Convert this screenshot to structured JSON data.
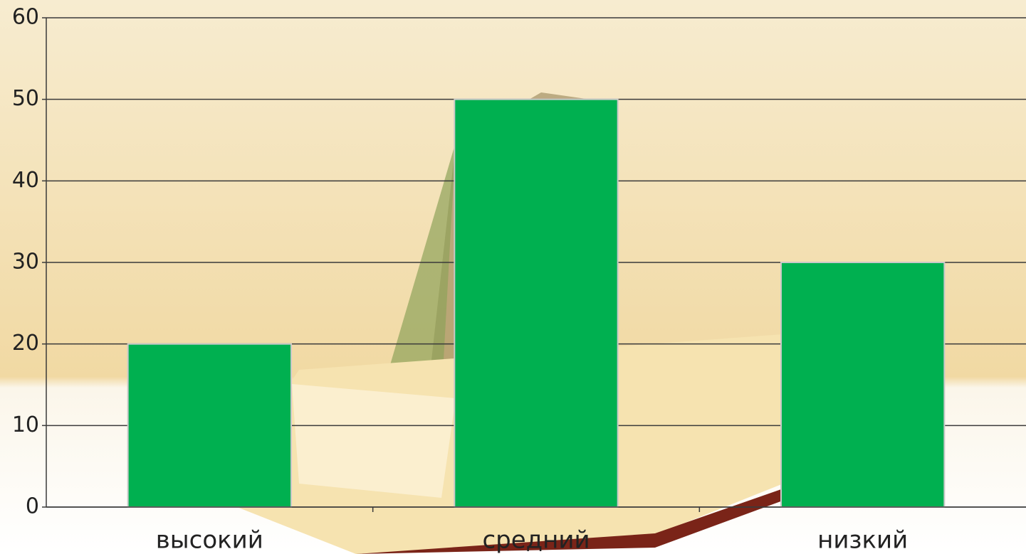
{
  "chart_data": {
    "type": "bar",
    "categories": [
      "высокий",
      "средний",
      "низкий"
    ],
    "values": [
      20,
      50,
      30
    ],
    "color": "#00b050",
    "ylim": [
      0,
      60
    ],
    "yticks": [
      0,
      10,
      20,
      30,
      40,
      50,
      60
    ],
    "grid": true
  }
}
